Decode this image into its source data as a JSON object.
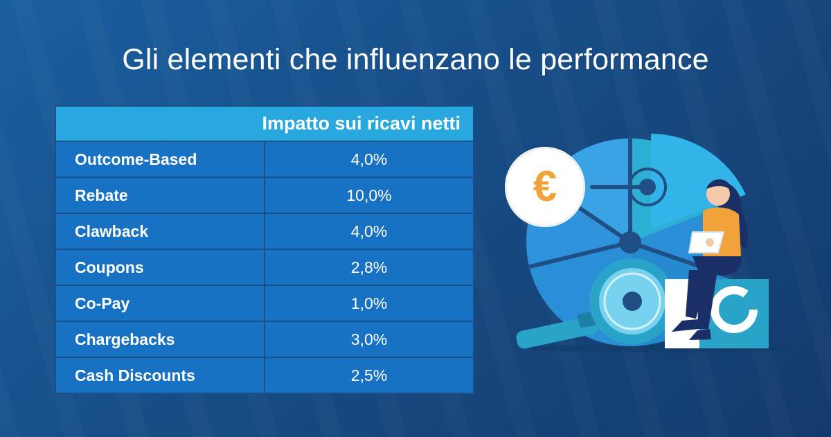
{
  "title": "Gli elementi che influenzano le performance",
  "table": {
    "header": "Impatto sui ricavi netti",
    "rows": [
      {
        "label": "Outcome-Based",
        "value": "4,0%"
      },
      {
        "label": "Rebate",
        "value": "10,0%"
      },
      {
        "label": "Clawback",
        "value": "4,0%"
      },
      {
        "label": "Coupons",
        "value": "2,8%"
      },
      {
        "label": "Co-Pay",
        "value": "1,0%"
      },
      {
        "label": "Chargebacks",
        "value": "3,0%"
      },
      {
        "label": "Cash Discounts",
        "value": "2,5%"
      }
    ]
  },
  "illustration": {
    "currency_symbol": "€",
    "icons": [
      "pie-chart-icon",
      "euro-coin-icon",
      "magnifier-icon",
      "donut-chart-icon",
      "woman-with-tablet-icon"
    ]
  },
  "colors": {
    "header_blue": "#29a8e0",
    "row_blue": "#1872c4",
    "euro_orange": "#f2a23a"
  }
}
